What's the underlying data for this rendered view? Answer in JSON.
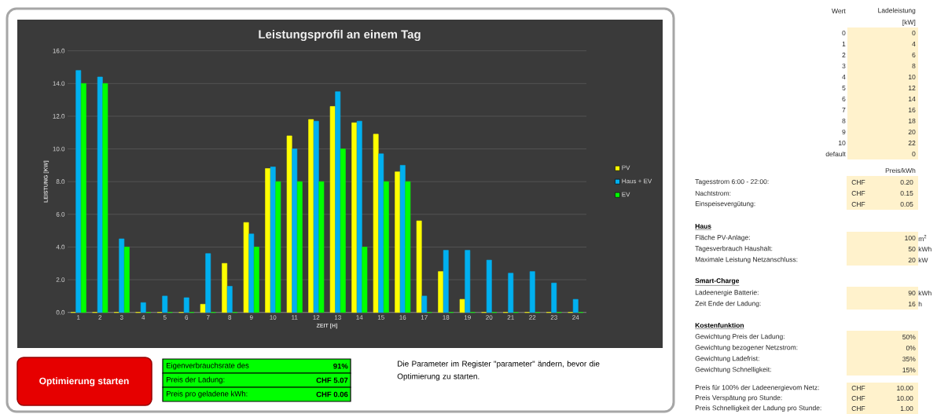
{
  "chart_data": {
    "type": "bar",
    "title": "Leistungsprofil an einem Tag",
    "xlabel": "ZEIT [H]",
    "ylabel": "LEISTUNG [KW]",
    "categories": [
      "1",
      "2",
      "3",
      "4",
      "5",
      "6",
      "7",
      "8",
      "9",
      "10",
      "11",
      "12",
      "13",
      "14",
      "15",
      "16",
      "17",
      "18",
      "19",
      "20",
      "21",
      "22",
      "23",
      "24"
    ],
    "series": [
      {
        "name": "PV",
        "color": "#ffff00",
        "values": [
          0,
          0,
          0,
          0,
          0,
          0,
          0.5,
          3.0,
          5.5,
          8.8,
          10.8,
          11.8,
          12.6,
          11.6,
          10.9,
          8.6,
          5.6,
          2.5,
          0.8,
          0,
          0,
          0,
          0,
          0
        ]
      },
      {
        "name": "Haus + EV",
        "color": "#00b0f0",
        "values": [
          14.8,
          14.4,
          4.5,
          0.6,
          1.0,
          0.9,
          3.6,
          1.6,
          4.8,
          8.9,
          10.0,
          11.7,
          13.5,
          11.7,
          9.7,
          9.0,
          1.0,
          3.8,
          3.8,
          3.2,
          2.4,
          2.5,
          1.8,
          0.8
        ]
      },
      {
        "name": "EV",
        "color": "#00ff00",
        "values": [
          14,
          14,
          4,
          0,
          0,
          0,
          0,
          0,
          4,
          8,
          8,
          8,
          10,
          4,
          8,
          8,
          0,
          0,
          0,
          0,
          0,
          0,
          0,
          0
        ]
      }
    ],
    "ylim": [
      0,
      16
    ],
    "yticks": [
      {
        "value": 0,
        "label": "0.0"
      },
      {
        "value": 2,
        "label": "2.0"
      },
      {
        "value": 4,
        "label": "4.0"
      },
      {
        "value": 6,
        "label": "6.0"
      },
      {
        "value": 8,
        "label": "8.0"
      },
      {
        "value": 10,
        "label": "10.0"
      },
      {
        "value": 12,
        "label": "12.0"
      },
      {
        "value": 14,
        "label": "14.0"
      },
      {
        "value": 16,
        "label": "16.0"
      }
    ],
    "grid": "y",
    "legend": "right",
    "annotations": [
      "Optimierung starten",
      "Eigenverbrauchsrate des",
      "91%",
      "Preis der Ladung:",
      "CHF 5.07",
      "Preis pro geladene kWh:",
      "CHF 0.06",
      "Die Parameter im Register \"parameter\" ändern, bevor die Optimierung zu starten.",
      "Wert",
      "Ladeleistung",
      "[kW]",
      "0",
      "1",
      "2",
      "3",
      "4",
      "5",
      "6",
      "7",
      "8",
      "9",
      "10",
      "default",
      "0",
      "4",
      "6",
      "8",
      "10",
      "12",
      "14",
      "16",
      "18",
      "20",
      "22",
      "0",
      "Preis/kWh",
      "Tagesstrom 6:00 - 22:00:",
      "CHF",
      "0.20",
      "Nachtstrom:",
      "CHF",
      "0.15",
      "Einspeisevergütung:",
      "CHF",
      "0.05",
      "Haus",
      "Fläche PV-Anlage:",
      "100",
      "m$^{2}$",
      "Tagesverbrauch Haushalt:",
      "50",
      "kWh",
      "Maximale Leistung Netzanschluss:",
      "20",
      "kW",
      "Smart-Charge",
      "Ladeenergie Batterie:",
      "90",
      "kWh",
      "Zeit Ende der Ladung:",
      "16",
      "h",
      "Kostenfunktion",
      "Gewichtung Preis der Ladung:",
      "50%",
      "Gewichtung bezogener Netzstrom:",
      "0%",
      "Gewichtung Ladefrist:",
      "35%",
      "Gewichtung Schnelligkeit:",
      "15%",
      "Preis für 100% der Ladeenergievom Netz:",
      "CHF",
      "10.00",
      "Preis Verspätung pro Stunde:",
      "CHF",
      "10.00",
      "Preis Schnelligkeit der Ladung pro Stunde:",
      "CHF",
      "1.00"
    ]
  }
}
